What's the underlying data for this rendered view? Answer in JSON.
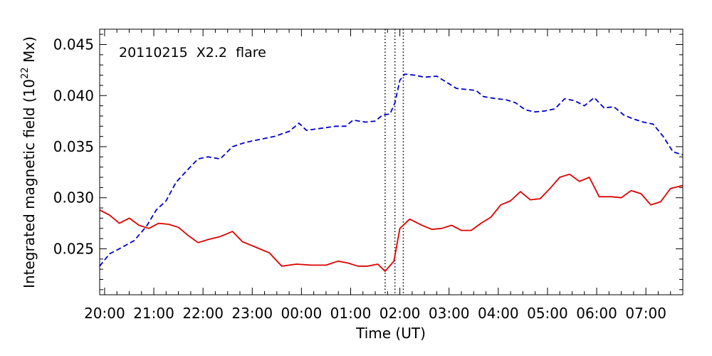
{
  "chart_data": {
    "type": "line",
    "annotation": "20110215  X2.2  flare",
    "xlabel": "Time (UT)",
    "ylabel": "Integrated magnetic field (10",
    "ylabel_sup": "22",
    "ylabel_unit": " Mx)",
    "x_unit": "hours since 2011-02-14 20:00 UT",
    "xlim": [
      -0.1,
      11.75
    ],
    "ylim": [
      0.0205,
      0.0465
    ],
    "x_ticks": [
      {
        "x": 0,
        "label": "20:00"
      },
      {
        "x": 1,
        "label": "21:00"
      },
      {
        "x": 2,
        "label": "22:00"
      },
      {
        "x": 3,
        "label": "23:00"
      },
      {
        "x": 4,
        "label": "00:00"
      },
      {
        "x": 5,
        "label": "01:00"
      },
      {
        "x": 6,
        "label": "02:00"
      },
      {
        "x": 7,
        "label": "03:00"
      },
      {
        "x": 8,
        "label": "04:00"
      },
      {
        "x": 9,
        "label": "05:00"
      },
      {
        "x": 10,
        "label": "06:00"
      },
      {
        "x": 11,
        "label": "07:00"
      }
    ],
    "y_ticks": [
      {
        "y": 0.025,
        "label": "0.025"
      },
      {
        "y": 0.03,
        "label": "0.030"
      },
      {
        "y": 0.035,
        "label": "0.035"
      },
      {
        "y": 0.04,
        "label": "0.040"
      },
      {
        "y": 0.045,
        "label": "0.045"
      }
    ],
    "vlines": [
      5.7,
      5.9,
      6.07
    ],
    "series": [
      {
        "color": "#0000cc",
        "style": "dashed",
        "points": [
          [
            -0.1,
            0.0233
          ],
          [
            0.1,
            0.0245
          ],
          [
            0.3,
            0.025
          ],
          [
            0.6,
            0.0258
          ],
          [
            0.85,
            0.0272
          ],
          [
            1.05,
            0.0288
          ],
          [
            1.25,
            0.0297
          ],
          [
            1.45,
            0.0315
          ],
          [
            1.7,
            0.0328
          ],
          [
            1.9,
            0.0338
          ],
          [
            2.1,
            0.034
          ],
          [
            2.35,
            0.0338
          ],
          [
            2.6,
            0.035
          ],
          [
            2.85,
            0.0354
          ],
          [
            3.15,
            0.0357
          ],
          [
            3.45,
            0.036
          ],
          [
            3.75,
            0.0365
          ],
          [
            3.95,
            0.0373
          ],
          [
            4.1,
            0.0366
          ],
          [
            4.4,
            0.0368
          ],
          [
            4.7,
            0.037
          ],
          [
            4.9,
            0.037
          ],
          [
            5.05,
            0.0376
          ],
          [
            5.3,
            0.0374
          ],
          [
            5.5,
            0.0375
          ],
          [
            5.65,
            0.0381
          ],
          [
            5.8,
            0.0382
          ],
          [
            5.9,
            0.0393
          ],
          [
            6.0,
            0.0415
          ],
          [
            6.1,
            0.0421
          ],
          [
            6.3,
            0.042
          ],
          [
            6.5,
            0.0418
          ],
          [
            6.75,
            0.0419
          ],
          [
            6.95,
            0.0413
          ],
          [
            7.15,
            0.0407
          ],
          [
            7.35,
            0.0406
          ],
          [
            7.55,
            0.0405
          ],
          [
            7.7,
            0.0399
          ],
          [
            7.95,
            0.0397
          ],
          [
            8.15,
            0.0396
          ],
          [
            8.35,
            0.0393
          ],
          [
            8.55,
            0.0386
          ],
          [
            8.75,
            0.0384
          ],
          [
            8.95,
            0.0385
          ],
          [
            9.15,
            0.0387
          ],
          [
            9.35,
            0.0397
          ],
          [
            9.55,
            0.0395
          ],
          [
            9.75,
            0.039
          ],
          [
            9.95,
            0.0398
          ],
          [
            10.15,
            0.0388
          ],
          [
            10.35,
            0.0389
          ],
          [
            10.55,
            0.0381
          ],
          [
            10.75,
            0.0377
          ],
          [
            10.95,
            0.0374
          ],
          [
            11.15,
            0.0372
          ],
          [
            11.35,
            0.036
          ],
          [
            11.55,
            0.0345
          ],
          [
            11.75,
            0.0342
          ]
        ]
      },
      {
        "color": "#dd0000",
        "style": "solid",
        "points": [
          [
            -0.1,
            0.0288
          ],
          [
            0.1,
            0.0283
          ],
          [
            0.3,
            0.0275
          ],
          [
            0.5,
            0.028
          ],
          [
            0.7,
            0.0273
          ],
          [
            0.9,
            0.027
          ],
          [
            1.1,
            0.0275
          ],
          [
            1.3,
            0.0274
          ],
          [
            1.5,
            0.0271
          ],
          [
            1.7,
            0.0263
          ],
          [
            1.9,
            0.0256
          ],
          [
            2.1,
            0.0259
          ],
          [
            2.35,
            0.0262
          ],
          [
            2.6,
            0.0267
          ],
          [
            2.8,
            0.0257
          ],
          [
            3.1,
            0.0251
          ],
          [
            3.35,
            0.0246
          ],
          [
            3.6,
            0.0233
          ],
          [
            3.9,
            0.0235
          ],
          [
            4.2,
            0.0234
          ],
          [
            4.5,
            0.0234
          ],
          [
            4.75,
            0.0238
          ],
          [
            4.95,
            0.0236
          ],
          [
            5.15,
            0.0233
          ],
          [
            5.35,
            0.0233
          ],
          [
            5.55,
            0.0235
          ],
          [
            5.7,
            0.0228
          ],
          [
            5.88,
            0.0238
          ],
          [
            6.0,
            0.027
          ],
          [
            6.2,
            0.0279
          ],
          [
            6.45,
            0.0273
          ],
          [
            6.65,
            0.0269
          ],
          [
            6.85,
            0.027
          ],
          [
            7.05,
            0.0273
          ],
          [
            7.25,
            0.0268
          ],
          [
            7.45,
            0.0268
          ],
          [
            7.65,
            0.0275
          ],
          [
            7.85,
            0.0281
          ],
          [
            8.05,
            0.0293
          ],
          [
            8.25,
            0.0297
          ],
          [
            8.45,
            0.0306
          ],
          [
            8.65,
            0.0298
          ],
          [
            8.85,
            0.0299
          ],
          [
            9.05,
            0.0309
          ],
          [
            9.25,
            0.032
          ],
          [
            9.45,
            0.0323
          ],
          [
            9.65,
            0.0316
          ],
          [
            9.85,
            0.032
          ],
          [
            10.05,
            0.0301
          ],
          [
            10.3,
            0.0301
          ],
          [
            10.5,
            0.03
          ],
          [
            10.7,
            0.0307
          ],
          [
            10.9,
            0.0304
          ],
          [
            11.1,
            0.0293
          ],
          [
            11.3,
            0.0296
          ],
          [
            11.5,
            0.0309
          ],
          [
            11.75,
            0.0312
          ]
        ]
      }
    ]
  }
}
